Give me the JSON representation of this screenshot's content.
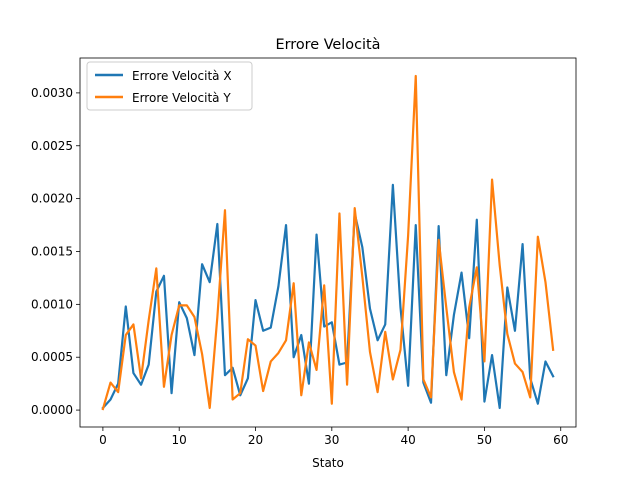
{
  "chart_data": {
    "type": "line",
    "title": "Errore Velocità",
    "xlabel": "Stato",
    "ylabel": "",
    "xlim": [
      -3,
      62
    ],
    "ylim": [
      -0.00016,
      0.00333
    ],
    "xticks": [
      0,
      10,
      20,
      30,
      40,
      50,
      60
    ],
    "xtick_labels": [
      "0",
      "10",
      "20",
      "30",
      "40",
      "50",
      "60"
    ],
    "yticks": [
      0.0,
      0.0005,
      0.001,
      0.0015,
      0.002,
      0.0025,
      0.003
    ],
    "ytick_labels": [
      "0.0000",
      "0.0005",
      "0.0010",
      "0.0015",
      "0.0020",
      "0.0025",
      "0.0030"
    ],
    "grid": false,
    "legend_position": "top-left",
    "x": [
      0,
      1,
      2,
      3,
      4,
      5,
      6,
      7,
      8,
      9,
      10,
      11,
      12,
      13,
      14,
      15,
      16,
      17,
      18,
      19,
      20,
      21,
      22,
      23,
      24,
      25,
      26,
      27,
      28,
      29,
      30,
      31,
      32,
      33,
      34,
      35,
      36,
      37,
      38,
      39,
      40,
      41,
      42,
      43,
      44,
      45,
      46,
      47,
      48,
      49,
      50,
      51,
      52,
      53,
      54,
      55,
      56,
      57,
      58,
      59
    ],
    "series": [
      {
        "name": "Errore Velocità X",
        "color": "#1f77b4",
        "values": [
          2e-05,
          0.0001,
          0.00025,
          0.00098,
          0.00035,
          0.00024,
          0.00043,
          0.00112,
          0.00127,
          0.00016,
          0.00102,
          0.00087,
          0.00052,
          0.00138,
          0.00121,
          0.00176,
          0.00033,
          0.0004,
          0.00014,
          0.0003,
          0.00104,
          0.00075,
          0.00078,
          0.00117,
          0.00175,
          0.0005,
          0.00071,
          0.00025,
          0.00166,
          0.00079,
          0.00083,
          0.00043,
          0.00045,
          0.00186,
          0.00154,
          0.00096,
          0.00066,
          0.00081,
          0.00213,
          0.00097,
          0.00023,
          0.00175,
          0.00026,
          7e-05,
          0.00174,
          0.00033,
          0.0009,
          0.0013,
          0.00068,
          0.0018,
          8e-05,
          0.00052,
          2e-05,
          0.00116,
          0.00075,
          0.00157,
          0.0003,
          6e-05,
          0.00046,
          0.00032
        ]
      },
      {
        "name": "Errore Velocità Y",
        "color": "#ff7f0e",
        "values": [
          1e-05,
          0.00026,
          0.00017,
          0.00071,
          0.00081,
          0.0003,
          0.00085,
          0.00134,
          0.00022,
          0.00071,
          0.00099,
          0.00099,
          0.00088,
          0.00053,
          2e-05,
          0.00088,
          0.00189,
          0.0001,
          0.00016,
          0.00067,
          0.00061,
          0.00018,
          0.00046,
          0.00054,
          0.00066,
          0.0012,
          0.00014,
          0.00064,
          0.00038,
          0.00118,
          6e-05,
          0.00186,
          0.00024,
          0.00191,
          0.00126,
          0.00055,
          0.00017,
          0.00074,
          0.00029,
          0.00057,
          0.00165,
          0.00316,
          0.00029,
          0.00012,
          0.00161,
          0.00097,
          0.00036,
          0.0001,
          0.00097,
          0.00135,
          0.00046,
          0.00218,
          0.00137,
          0.00072,
          0.00044,
          0.00036,
          0.00012,
          0.00164,
          0.00121,
          0.00057
        ]
      }
    ]
  }
}
